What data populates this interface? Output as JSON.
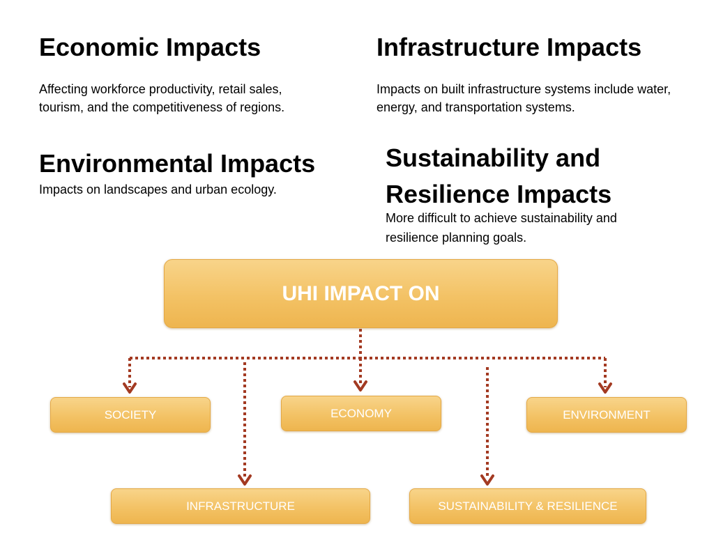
{
  "sections": {
    "economic": {
      "title": "Economic Impacts",
      "text": "Affecting  workforce productivity, retail sales, tourism, and the competitiveness of regions."
    },
    "infrastructure": {
      "title": "Infrastructure Impacts",
      "text": "Impacts on built infrastructure systems  include water, energy, and transportation systems."
    },
    "environmental": {
      "title": "Environmental Impacts",
      "text": "Impacts on landscapes and urban ecology."
    },
    "sustainability": {
      "title": "Sustainability and Resilience Impacts",
      "text": "More difficult to achieve sustainability and resilience planning goals."
    }
  },
  "diagram": {
    "root": "UHI IMPACT ON",
    "nodes": {
      "society": "SOCIETY",
      "economy": "ECONOMY",
      "environment": "ENVIRONMENT",
      "infrastructure": "INFRASTRUCTURE",
      "sustainability": "SUSTAINABILITY  & RESILIENCE"
    },
    "colors": {
      "box": "#f3c265",
      "connector": "#a33a22"
    }
  }
}
